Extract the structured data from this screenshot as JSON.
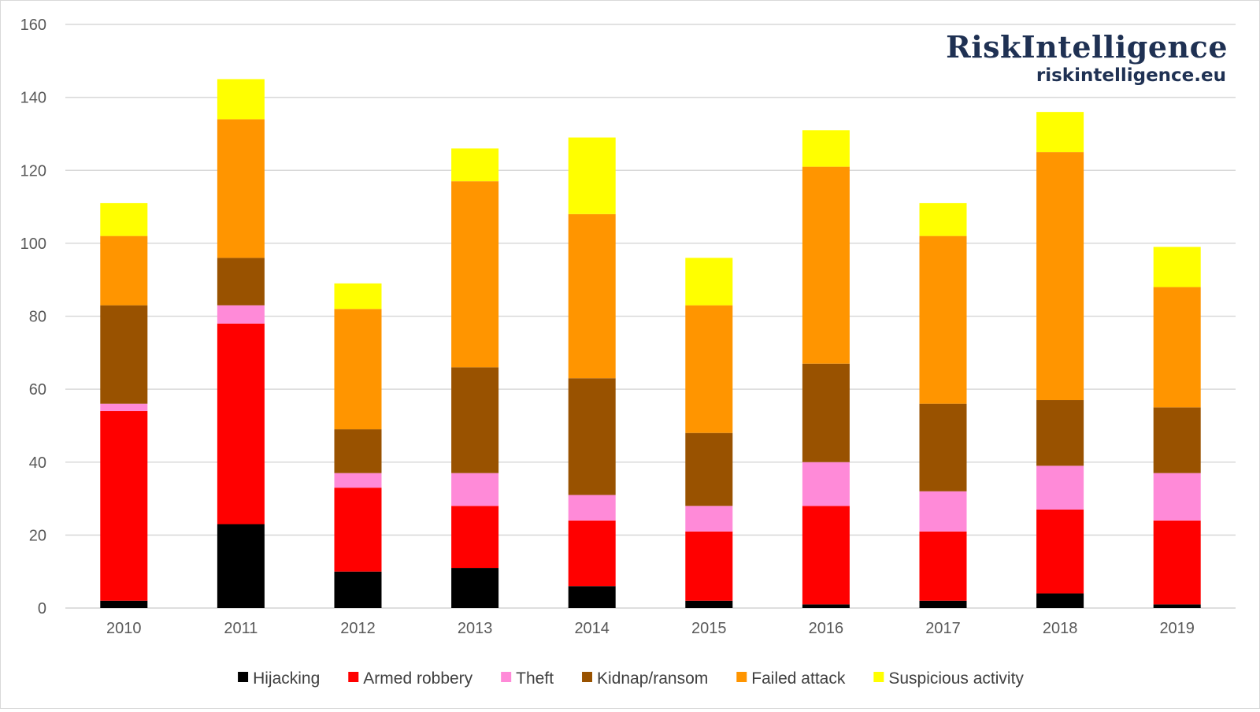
{
  "branding": {
    "name": "RiskIntelligence",
    "url": "riskintelligence.eu",
    "color": "#1f3153"
  },
  "chart_data": {
    "type": "bar",
    "stacked": true,
    "title": "",
    "xlabel": "",
    "ylabel": "",
    "ylim": [
      0,
      160
    ],
    "yticks": [
      0,
      20,
      40,
      60,
      80,
      100,
      120,
      140,
      160
    ],
    "grid": true,
    "legend_position": "bottom",
    "categories": [
      "2010",
      "2011",
      "2012",
      "2013",
      "2014",
      "2015",
      "2016",
      "2017",
      "2018",
      "2019"
    ],
    "series": [
      {
        "name": "Hijacking",
        "color": "#000000",
        "values": [
          2,
          23,
          10,
          11,
          6,
          2,
          1,
          2,
          4,
          1
        ]
      },
      {
        "name": "Armed robbery",
        "color": "#ff0000",
        "values": [
          52,
          55,
          23,
          17,
          18,
          19,
          27,
          19,
          23,
          23
        ]
      },
      {
        "name": "Theft",
        "color": "#ff8ad8",
        "values": [
          2,
          5,
          4,
          9,
          7,
          7,
          12,
          11,
          12,
          13
        ]
      },
      {
        "name": "Kidnap/ransom",
        "color": "#995200",
        "values": [
          27,
          13,
          12,
          29,
          32,
          20,
          27,
          24,
          18,
          18
        ]
      },
      {
        "name": "Failed attack",
        "color": "#ff9500",
        "values": [
          19,
          38,
          33,
          51,
          45,
          35,
          54,
          46,
          68,
          33
        ]
      },
      {
        "name": "Suspicious activity",
        "color": "#ffff00",
        "values": [
          9,
          11,
          7,
          9,
          21,
          13,
          10,
          9,
          11,
          11
        ]
      }
    ]
  }
}
